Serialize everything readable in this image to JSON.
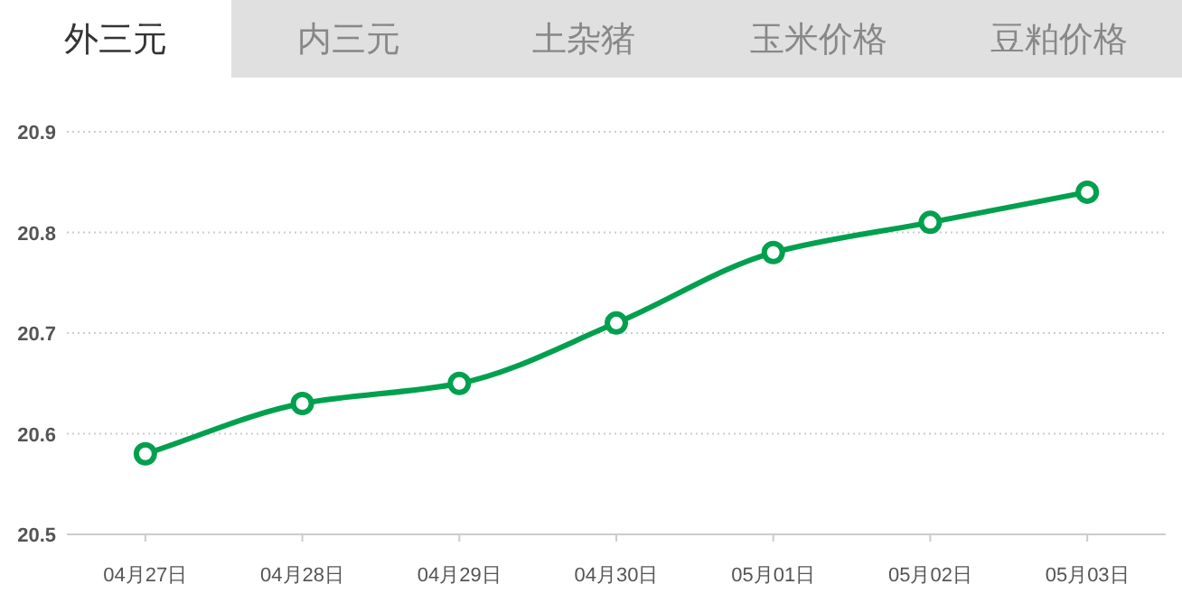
{
  "chart_data": {
    "type": "line",
    "title": "外三元",
    "annotations": [
      "内三元",
      "土杂猪",
      "玉米价格",
      "豆粕价格"
    ],
    "categories": [
      "04月27日",
      "04月28日",
      "04月29日",
      "04月30日",
      "05月01日",
      "05月02日",
      "05月03日"
    ],
    "series": [
      {
        "color": "#00a04f",
        "values": [
          20.58,
          20.63,
          20.65,
          20.71,
          20.78,
          20.81,
          20.84
        ]
      }
    ],
    "ylim": [
      20.5,
      20.9
    ],
    "yticks": [
      20.5,
      20.6,
      20.7,
      20.8,
      20.9
    ],
    "grid": "y",
    "marker": "circle"
  }
}
